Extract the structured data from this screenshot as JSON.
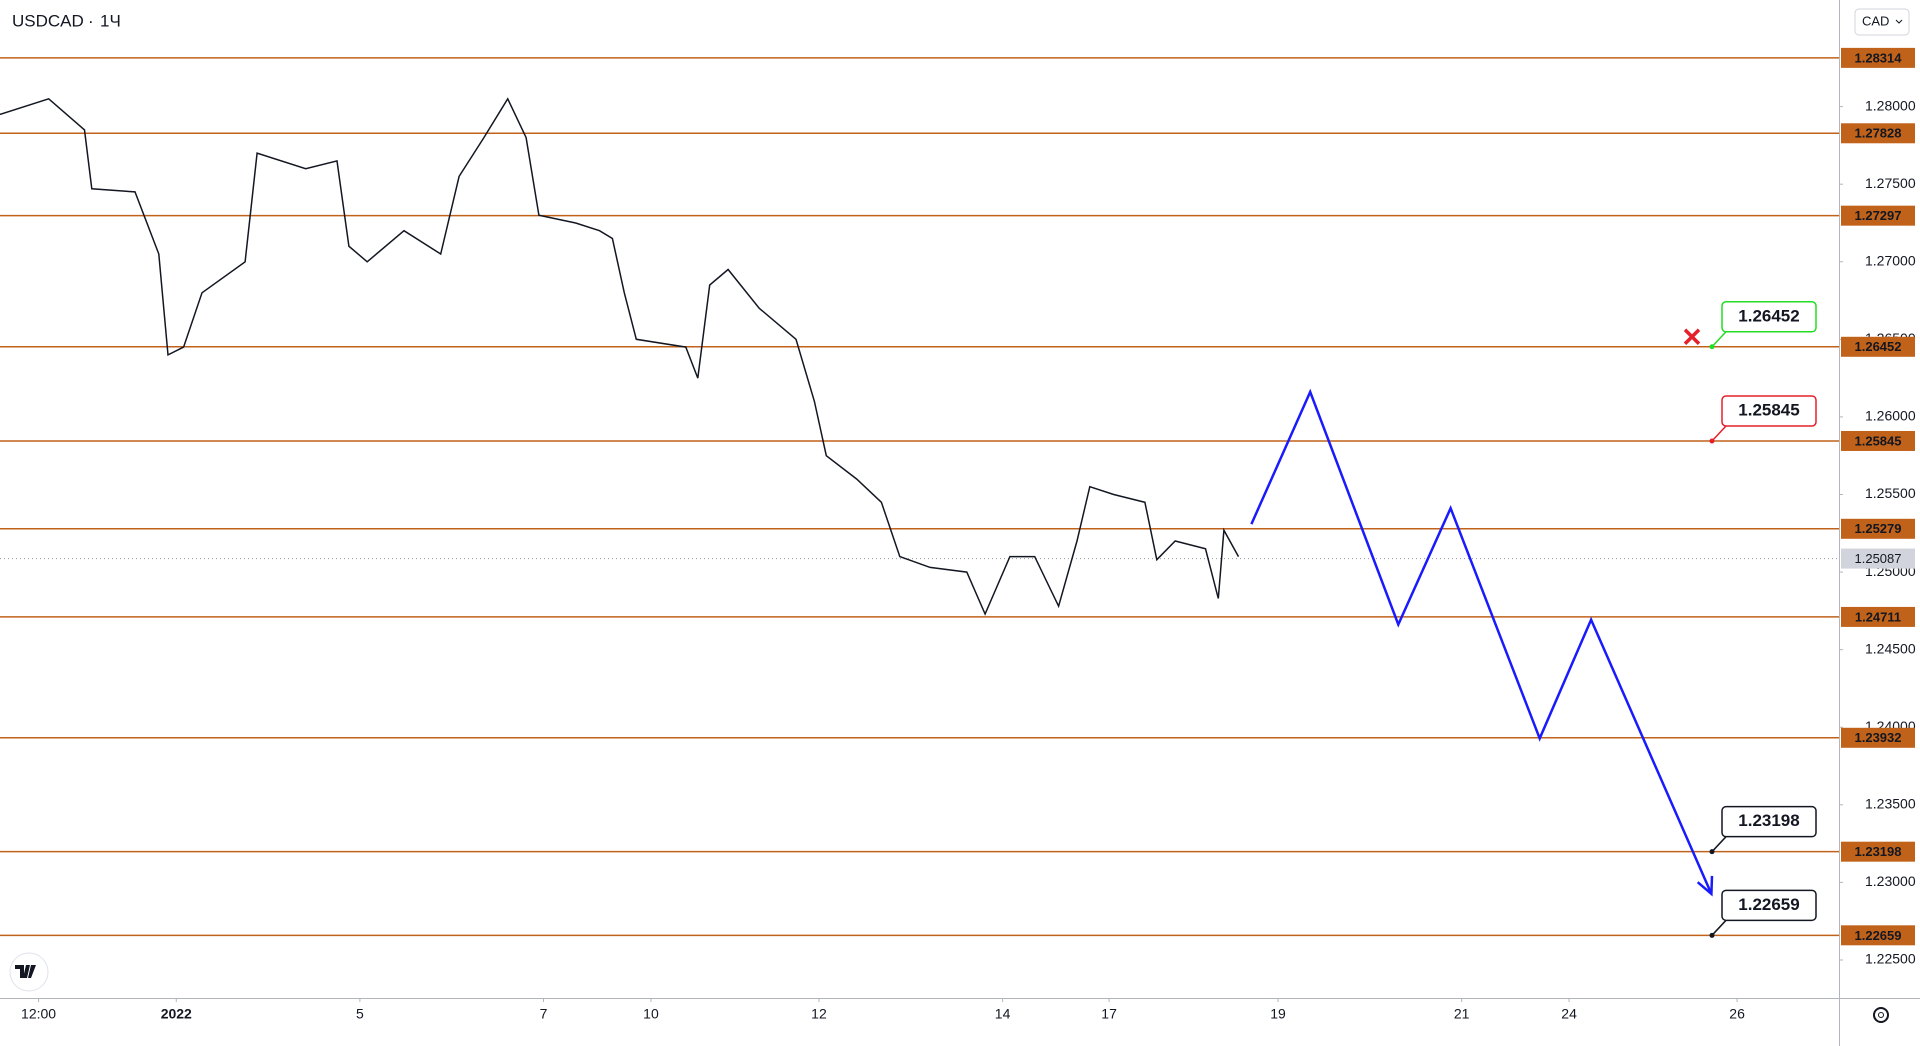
{
  "header": {
    "symbol": "USDCAD",
    "interval": "1Ч",
    "currency": "CAD"
  },
  "chart_data": {
    "type": "line",
    "xlim": [
      -0.92,
      19.11
    ],
    "xticks": [
      {
        "value": -0.5,
        "label": "12:00"
      },
      {
        "value": 1,
        "label": "2022"
      },
      {
        "value": 3,
        "label": "5"
      },
      {
        "value": 5,
        "label": "7"
      },
      {
        "value": 6.17,
        "label": "10"
      },
      {
        "value": 8,
        "label": "12"
      },
      {
        "value": 10,
        "label": "14"
      },
      {
        "value": 11.16,
        "label": "17"
      },
      {
        "value": 13,
        "label": "19"
      },
      {
        "value": 15,
        "label": "21"
      },
      {
        "value": 16.17,
        "label": "24"
      },
      {
        "value": 18,
        "label": "26"
      }
    ],
    "ylim": [
      1.22255,
      1.28687
    ],
    "yticks": [
      {
        "value": 1.28,
        "label": "1.28000"
      },
      {
        "value": 1.275,
        "label": "1.27500"
      },
      {
        "value": 1.27,
        "label": "1.27000"
      },
      {
        "value": 1.265,
        "label": "1.26500"
      },
      {
        "value": 1.26,
        "label": "1.26000"
      },
      {
        "value": 1.255,
        "label": "1.25500"
      },
      {
        "value": 1.25,
        "label": "1.25000"
      },
      {
        "value": 1.245,
        "label": "1.24500"
      },
      {
        "value": 1.24,
        "label": "1.24000"
      },
      {
        "value": 1.235,
        "label": "1.23500"
      },
      {
        "value": 1.23,
        "label": "1.23000"
      },
      {
        "value": 1.225,
        "label": "1.22500"
      }
    ],
    "series": [
      {
        "color": "#131722",
        "x": [
          -0.92,
          -0.39,
          0.0,
          0.08,
          0.55,
          0.81,
          0.91,
          1.08,
          1.28,
          1.75,
          1.88,
          2.41,
          2.75,
          2.88,
          3.08,
          3.48,
          3.88,
          4.08,
          4.35,
          4.61,
          4.81,
          4.95,
          5.35,
          5.61,
          5.75,
          5.88,
          6.01,
          6.55,
          6.68,
          6.81,
          7.01,
          7.35,
          7.75,
          7.95,
          8.08,
          8.41,
          8.68,
          8.88,
          9.21,
          9.61,
          9.81,
          10.08,
          10.35,
          10.61,
          10.81,
          10.95,
          11.21,
          11.55,
          11.68,
          11.88,
          12.21,
          12.35,
          12.41,
          12.57
        ],
        "values": [
          1.2795,
          1.2805,
          1.2785,
          1.2747,
          1.2745,
          1.2705,
          1.264,
          1.2645,
          1.268,
          1.27,
          1.277,
          1.276,
          1.2765,
          1.271,
          1.27,
          1.272,
          1.2705,
          1.2755,
          1.278,
          1.2805,
          1.278,
          1.273,
          1.2725,
          1.272,
          1.2715,
          1.268,
          1.265,
          1.2645,
          1.2625,
          1.2685,
          1.2695,
          1.267,
          1.265,
          1.261,
          1.2575,
          1.256,
          1.2545,
          1.251,
          1.2503,
          1.25,
          1.2473,
          1.251,
          1.251,
          1.2478,
          1.252,
          1.2555,
          1.255,
          1.2545,
          1.2508,
          1.252,
          1.2515,
          1.2483,
          1.2527,
          1.251
        ]
      },
      {
        "color": "#1a1aff",
        "x": [
          12.71,
          13.35,
          14.31,
          14.88,
          15.85,
          16.41,
          17.72
        ],
        "values": [
          1.25309,
          1.26161,
          1.24662,
          1.25412,
          1.23928,
          1.24693,
          1.22926
        ]
      }
    ],
    "levels": [
      1.28314,
      1.27828,
      1.27297,
      1.26452,
      1.25845,
      1.25279,
      1.24711,
      1.23932,
      1.23198,
      1.22659
    ],
    "level_color": "#c1621a",
    "current_price": 1.25087,
    "callouts": [
      {
        "value": 1.26452,
        "color": "#22dd22"
      },
      {
        "value": 1.25845,
        "color": "#e5202a"
      },
      {
        "value": 1.23198,
        "color": "#131722"
      },
      {
        "value": 1.22659,
        "color": "#131722"
      }
    ]
  }
}
